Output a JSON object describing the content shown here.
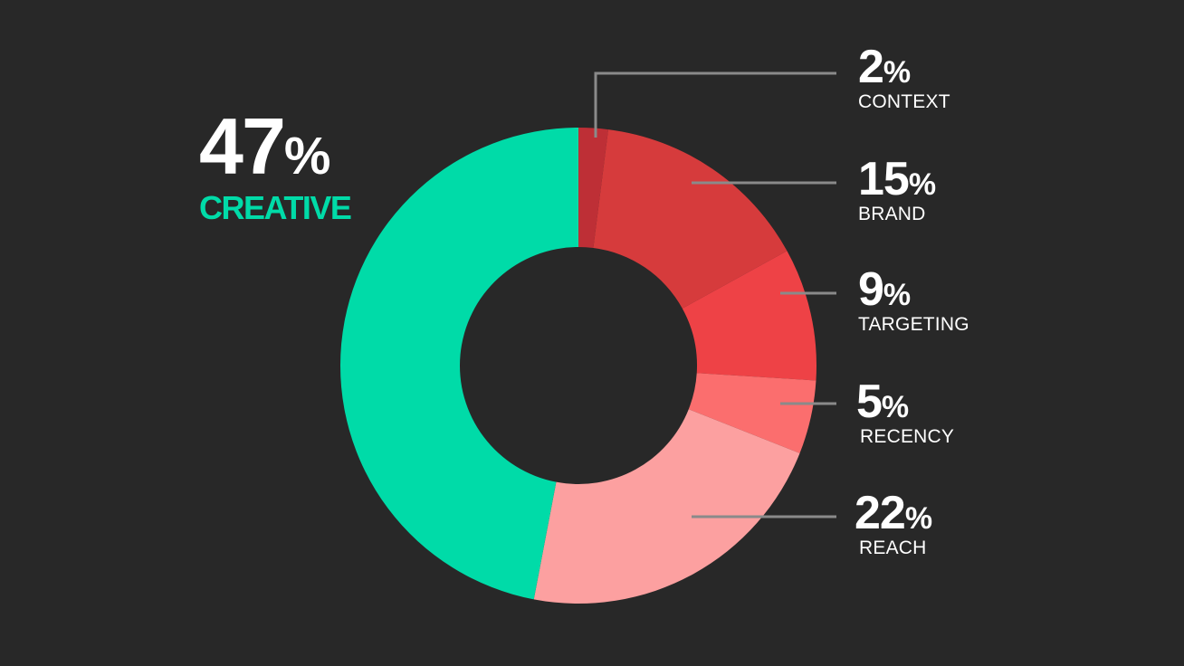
{
  "chart_data": {
    "type": "pie",
    "variant": "donut",
    "title": "",
    "unit": "%",
    "series": [
      {
        "name": "CONTEXT",
        "value": 2,
        "color": "#BE2F36"
      },
      {
        "name": "BRAND",
        "value": 15,
        "color": "#D63B3C"
      },
      {
        "name": "TARGETING",
        "value": 9,
        "color": "#EE4246"
      },
      {
        "name": "RECENCY",
        "value": 5,
        "color": "#FB6E6E"
      },
      {
        "name": "REACH",
        "value": 22,
        "color": "#FCA0A0"
      },
      {
        "name": "CREATIVE",
        "value": 47,
        "color": "#00DBA8"
      }
    ],
    "start_angle_deg": 0,
    "direction": "clockwise",
    "highlight": {
      "name": "CREATIVE",
      "value": "47",
      "suffix": "%",
      "color": "#00DBA8"
    },
    "callouts": [
      {
        "value": "2",
        "suffix": "%",
        "name": "CONTEXT"
      },
      {
        "value": "15",
        "suffix": "%",
        "name": "BRAND"
      },
      {
        "value": "9",
        "suffix": "%",
        "name": "TARGETING"
      },
      {
        "value": "5",
        "suffix": "%",
        "name": "RECENCY"
      },
      {
        "value": "22",
        "suffix": "%",
        "name": "REACH"
      }
    ]
  },
  "colors": {
    "background": "#282828",
    "leader_line": "#8A8A8A",
    "label_text": "#FFFFFF",
    "accent": "#00DBA8"
  }
}
